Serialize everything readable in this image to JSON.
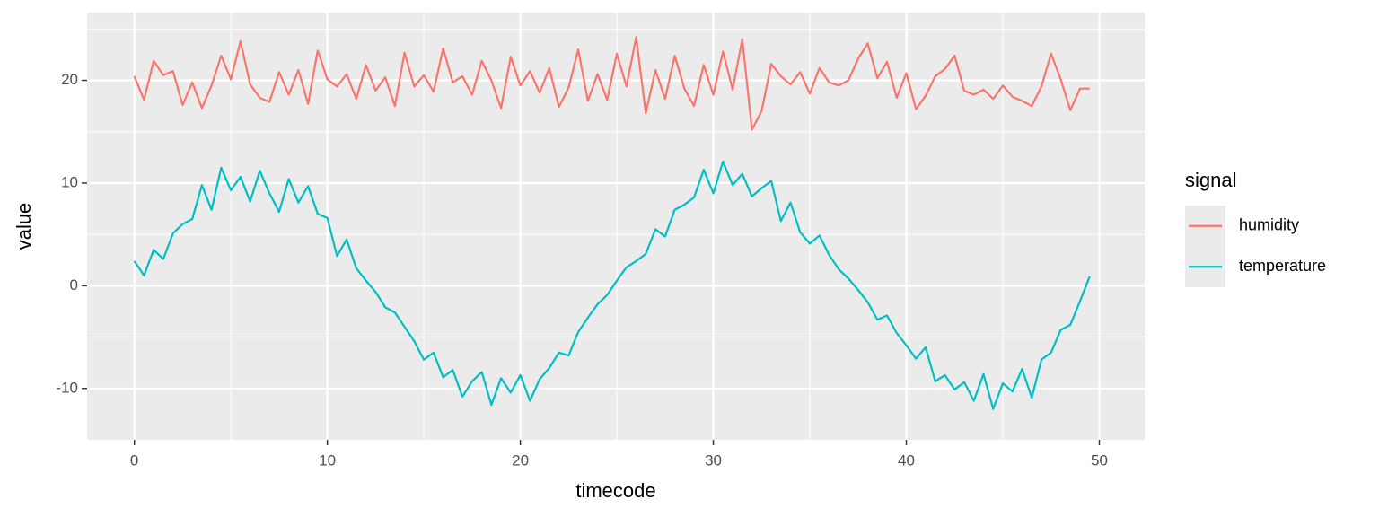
{
  "chart_data": {
    "type": "line",
    "xlabel": "timecode",
    "ylabel": "value",
    "legend_title": "signal",
    "legend": "right",
    "grid": true,
    "xlim": [
      -2.45,
      52.35
    ],
    "ylim": [
      -15,
      26.6
    ],
    "xticks": [
      0,
      10,
      20,
      30,
      40,
      50
    ],
    "yticks": [
      -10,
      0,
      10,
      20
    ],
    "xminor": [
      5,
      15,
      25,
      35,
      45
    ],
    "yminor": [
      -5,
      5,
      15,
      25
    ],
    "x": [
      0,
      0.5,
      1,
      1.5,
      2,
      2.5,
      3,
      3.5,
      4,
      4.5,
      5,
      5.5,
      6,
      6.5,
      7,
      7.5,
      8,
      8.5,
      9,
      9.5,
      10,
      10.5,
      11,
      11.5,
      12,
      12.5,
      13,
      13.5,
      14,
      14.5,
      15,
      15.5,
      16,
      16.5,
      17,
      17.5,
      18,
      18.5,
      19,
      19.5,
      20,
      20.5,
      21,
      21.5,
      22,
      22.5,
      23,
      23.5,
      24,
      24.5,
      25,
      25.5,
      26,
      26.5,
      27,
      27.5,
      28,
      28.5,
      29,
      29.5,
      30,
      30.5,
      31,
      31.5,
      32,
      32.5,
      33,
      33.5,
      34,
      34.5,
      35,
      35.5,
      36,
      36.5,
      37,
      37.5,
      38,
      38.5,
      39,
      39.5,
      40,
      40.5,
      41,
      41.5,
      42,
      42.5,
      43,
      43.5,
      44,
      44.5,
      45,
      45.5,
      46,
      46.5,
      47,
      47.5,
      48,
      48.5,
      49,
      49.5
    ],
    "series": [
      {
        "name": "humidity",
        "color": "#F8766D",
        "values": [
          20.4,
          18.1,
          21.9,
          20.5,
          20.9,
          17.6,
          19.8,
          17.3,
          19.5,
          22.4,
          20.1,
          23.8,
          19.6,
          18.3,
          17.9,
          20.8,
          18.6,
          21.0,
          17.7,
          22.9,
          20.1,
          19.4,
          20.6,
          18.2,
          21.5,
          19.0,
          20.3,
          17.5,
          22.7,
          19.4,
          20.5,
          18.9,
          23.1,
          19.8,
          20.4,
          18.6,
          21.9,
          20.0,
          17.3,
          22.3,
          19.5,
          20.9,
          18.8,
          21.2,
          17.4,
          19.3,
          23.0,
          18.0,
          20.6,
          18.1,
          22.6,
          19.4,
          24.2,
          16.8,
          21.0,
          18.2,
          22.4,
          19.2,
          17.5,
          21.5,
          18.6,
          22.8,
          19.1,
          24.0,
          15.2,
          17.0,
          21.6,
          20.4,
          19.6,
          20.8,
          18.7,
          21.2,
          19.8,
          19.5,
          20.0,
          22.1,
          23.6,
          20.2,
          21.8,
          18.3,
          20.7,
          17.2,
          18.5,
          20.4,
          21.1,
          22.4,
          19.0,
          18.6,
          19.1,
          18.2,
          19.5,
          18.4,
          18.0,
          17.5,
          19.4,
          22.6,
          20.1,
          17.1,
          19.2,
          19.2
        ]
      },
      {
        "name": "temperature",
        "color": "#00BFC4",
        "values": [
          2.4,
          1.0,
          3.5,
          2.6,
          5.1,
          6.0,
          6.5,
          9.8,
          7.4,
          11.5,
          9.3,
          10.6,
          8.2,
          11.2,
          9.0,
          7.2,
          10.4,
          8.1,
          9.7,
          7.0,
          6.6,
          2.9,
          4.5,
          1.7,
          0.5,
          -0.6,
          -2.1,
          -2.6,
          -4.0,
          -5.4,
          -7.2,
          -6.5,
          -8.9,
          -8.2,
          -10.8,
          -9.3,
          -8.4,
          -11.6,
          -9.0,
          -10.4,
          -8.7,
          -11.2,
          -9.1,
          -8.0,
          -6.5,
          -6.8,
          -4.5,
          -3.1,
          -1.8,
          -0.9,
          0.5,
          1.8,
          2.4,
          3.1,
          5.5,
          4.8,
          7.4,
          7.9,
          8.6,
          11.3,
          9.0,
          12.1,
          9.8,
          10.9,
          8.7,
          9.5,
          10.2,
          6.3,
          8.1,
          5.2,
          4.1,
          4.9,
          3.0,
          1.6,
          0.7,
          -0.4,
          -1.6,
          -3.3,
          -2.9,
          -4.6,
          -5.8,
          -7.1,
          -6.0,
          -9.3,
          -8.7,
          -10.1,
          -9.4,
          -11.2,
          -8.6,
          -12.0,
          -9.5,
          -10.3,
          -8.1,
          -10.9,
          -7.2,
          -6.5,
          -4.3,
          -3.8,
          -1.5,
          0.9
        ]
      }
    ]
  }
}
